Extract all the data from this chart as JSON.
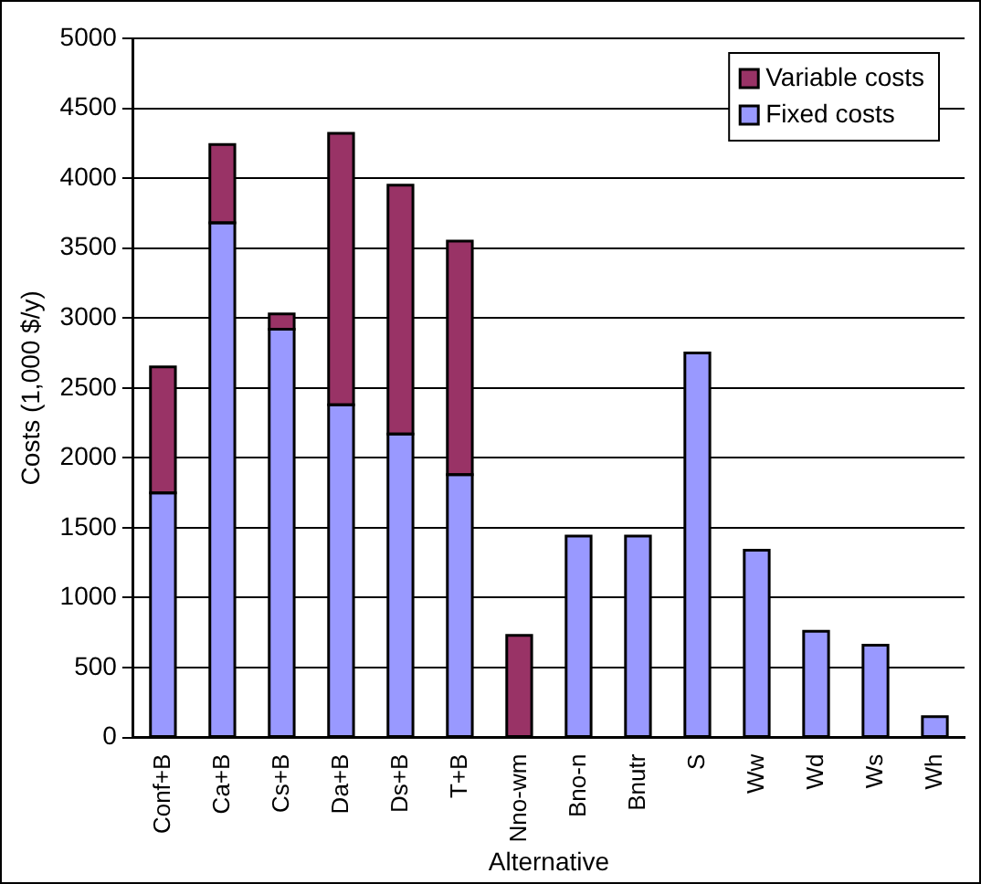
{
  "chart_data": {
    "type": "bar",
    "xlabel": "Alternative",
    "ylabel": "Costs (1,000 $/y)",
    "categories": [
      "Conf+B",
      "Ca+B",
      "Cs+B",
      "Da+B",
      "Ds+B",
      "T+B",
      "Nno-wm",
      "Bno-n",
      "Bnutr",
      "S",
      "Ww",
      "Wd",
      "Ws",
      "Wh"
    ],
    "series": [
      {
        "name": "Fixed costs",
        "color": "#9999ff",
        "values": [
          1750,
          3680,
          2920,
          2380,
          2170,
          1880,
          null,
          1440,
          1440,
          2750,
          1340,
          760,
          660,
          150
        ]
      },
      {
        "name": "Variable costs",
        "color": "#993366",
        "values": [
          900,
          560,
          110,
          1940,
          1780,
          1670,
          730,
          null,
          null,
          null,
          null,
          null,
          null,
          null
        ]
      }
    ],
    "stacked": true,
    "ylim": [
      0,
      5000
    ],
    "yticks": [
      0,
      500,
      1000,
      1500,
      2000,
      2500,
      3000,
      3500,
      4000,
      4500,
      5000
    ],
    "grid": "y",
    "legend": "top right"
  }
}
